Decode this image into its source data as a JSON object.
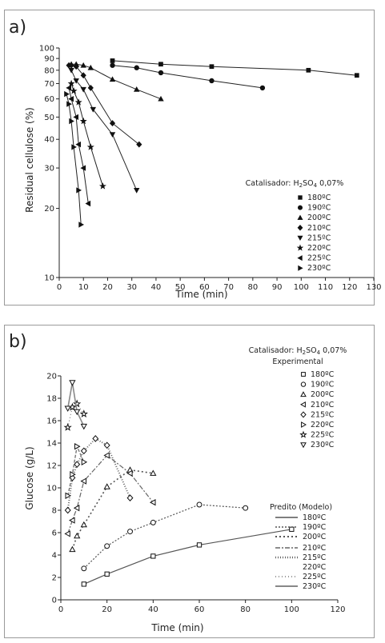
{
  "chart_data": [
    {
      "panel": "a)",
      "type": "scatter",
      "xlabel": "Time (min)",
      "ylabel": "Residual cellulose (%)",
      "xlim": [
        0,
        130
      ],
      "ylim": [
        10,
        100
      ],
      "yscale": "log",
      "xticks": [
        0,
        10,
        20,
        30,
        40,
        50,
        60,
        70,
        80,
        90,
        100,
        110,
        120,
        130
      ],
      "yticks": [
        10,
        20,
        30,
        40,
        50,
        60,
        70,
        80,
        90,
        100
      ],
      "grid": false,
      "legend": {
        "title_prefix": "Catalisador: H",
        "title_sub1": "2",
        "title_mid": "SO",
        "title_sub2": "4",
        "title_suffix": " 0,07%",
        "placement": "center-right"
      },
      "series": [
        {
          "name": "180ºC",
          "marker": "square",
          "x": [
            22,
            42,
            63,
            103,
            123
          ],
          "y": [
            88,
            85,
            83,
            80,
            76
          ]
        },
        {
          "name": "190ºC",
          "marker": "circle",
          "x": [
            22,
            32,
            42,
            63,
            84
          ],
          "y": [
            84,
            82,
            78,
            72,
            67
          ]
        },
        {
          "name": "200ºC",
          "marker": "triangle-up",
          "x": [
            5,
            7,
            10,
            13,
            22,
            32,
            42
          ],
          "y": [
            85,
            85,
            84,
            82,
            73,
            66,
            60
          ]
        },
        {
          "name": "210ºC",
          "marker": "diamond",
          "x": [
            4,
            5,
            7,
            10,
            13,
            22,
            33
          ],
          "y": [
            84,
            84,
            83,
            76,
            67,
            47,
            38
          ]
        },
        {
          "name": "215ºC",
          "marker": "triangle-down",
          "x": [
            5,
            7,
            10,
            14,
            22,
            32
          ],
          "y": [
            80,
            72,
            66,
            54,
            42,
            24
          ]
        },
        {
          "name": "220ºC",
          "marker": "star",
          "x": [
            5,
            6,
            8,
            10,
            13,
            18
          ],
          "y": [
            70,
            65,
            58,
            48,
            37,
            25
          ]
        },
        {
          "name": "225ºC",
          "marker": "triangle-left",
          "x": [
            4,
            5,
            7,
            8,
            10,
            12
          ],
          "y": [
            67,
            60,
            50,
            38,
            30,
            21
          ]
        },
        {
          "name": "230ºC",
          "marker": "triangle-right",
          "x": [
            3,
            4,
            5,
            6,
            8,
            9
          ],
          "y": [
            63,
            57,
            48,
            37,
            24,
            17
          ]
        }
      ]
    },
    {
      "panel": "b)",
      "type": "scatter",
      "xlabel": "Time (min)",
      "ylabel": "Glucose (g/L)",
      "xlim": [
        0,
        120
      ],
      "ylim": [
        0,
        20
      ],
      "xticks": [
        0,
        20,
        40,
        60,
        80,
        100,
        120
      ],
      "yticks": [
        0,
        2,
        4,
        6,
        8,
        10,
        12,
        14,
        16,
        18,
        20
      ],
      "grid": false,
      "legend": {
        "title_prefix": "Catalisador: H",
        "title_sub1": "2",
        "title_mid": "SO",
        "title_sub2": "4",
        "title_suffix": " 0,07%",
        "experimental_label": "Experimental",
        "model_label": "Predito (Modelo)",
        "placement": "top-right",
        "model_names": [
          "180ºC",
          "190ºC",
          "200ºC",
          "210ºC",
          "215ºC",
          "220ºC",
          "225ºC",
          "230ºC"
        ]
      },
      "series": [
        {
          "name": "180ºC",
          "marker": "square",
          "x": [
            10,
            20,
            40,
            60,
            100
          ],
          "y": [
            1.4,
            2.3,
            3.9,
            4.9,
            6.3
          ]
        },
        {
          "name": "190ºC",
          "marker": "circle",
          "x": [
            10,
            20,
            30,
            40,
            60,
            80
          ],
          "y": [
            2.8,
            4.8,
            6.1,
            6.9,
            8.5,
            8.2
          ]
        },
        {
          "name": "200ºC",
          "marker": "triangle-up",
          "x": [
            5,
            7,
            10,
            20,
            30,
            40
          ],
          "y": [
            4.5,
            5.7,
            6.7,
            10.1,
            11.6,
            11.3
          ]
        },
        {
          "name": "210ºC",
          "marker": "triangle-left",
          "x": [
            3,
            5,
            7,
            10,
            20,
            30,
            40
          ],
          "y": [
            5.9,
            7.1,
            8.2,
            10.6,
            12.9,
            11.3,
            8.7
          ]
        },
        {
          "name": "215ºC",
          "marker": "diamond",
          "x": [
            3,
            5,
            7,
            10,
            15,
            20,
            30
          ],
          "y": [
            8.0,
            10.9,
            12.1,
            13.3,
            14.4,
            13.8,
            9.1
          ]
        },
        {
          "name": "220ºC",
          "marker": "triangle-right",
          "x": [
            3,
            5,
            7,
            10
          ],
          "y": [
            9.3,
            11.2,
            13.7,
            12.3
          ]
        },
        {
          "name": "225ºC",
          "marker": "star",
          "x": [
            3,
            5,
            7,
            10
          ],
          "y": [
            15.4,
            17.2,
            17.5,
            16.6
          ]
        },
        {
          "name": "230ºC",
          "marker": "triangle-down",
          "x": [
            3,
            5,
            7,
            10
          ],
          "y": [
            17.1,
            19.4,
            16.8,
            15.5
          ]
        }
      ]
    }
  ]
}
